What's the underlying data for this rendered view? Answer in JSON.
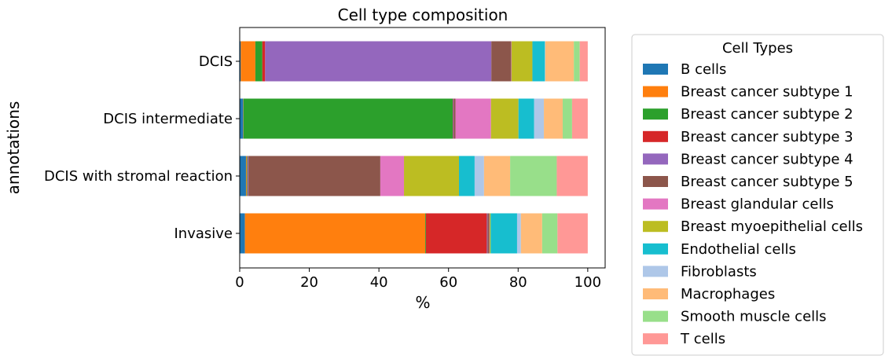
{
  "chart_data": {
    "type": "bar",
    "orientation": "horizontal",
    "stacked": true,
    "title": "Cell type composition",
    "xlabel": "%",
    "ylabel": "annotations",
    "xlim": [
      0,
      105
    ],
    "xticks": [
      "0",
      "20",
      "40",
      "60",
      "80",
      "100"
    ],
    "categories": [
      "DCIS",
      "DCIS intermediate",
      "DCIS with stromal reaction",
      "Invasive"
    ],
    "legend": {
      "title": "Cell Types",
      "placement": "outside right"
    },
    "grid": false,
    "series": [
      {
        "name": "B cells",
        "color": "#1f77b4",
        "values": [
          0.3,
          1.0,
          1.8,
          1.5
        ]
      },
      {
        "name": "Breast cancer subtype 1",
        "color": "#ff7f0e",
        "values": [
          4.2,
          0.1,
          0.2,
          51.8
        ]
      },
      {
        "name": "Breast cancer subtype 2",
        "color": "#2ca02c",
        "values": [
          2.0,
          60.1,
          0.2,
          0.2
        ]
      },
      {
        "name": "Breast cancer subtype 3",
        "color": "#d62728",
        "values": [
          0.8,
          0.1,
          0.1,
          17.5
        ]
      },
      {
        "name": "Breast cancer subtype 4",
        "color": "#9467bd",
        "values": [
          65.0,
          0.2,
          0.2,
          0.2
        ]
      },
      {
        "name": "Breast cancer subtype 5",
        "color": "#8c564b",
        "values": [
          5.7,
          0.5,
          37.9,
          0.5
        ]
      },
      {
        "name": "Breast glandular cells",
        "color": "#e377c2",
        "values": [
          0.1,
          10.2,
          6.8,
          0.1
        ]
      },
      {
        "name": "Breast myoepithelial cells",
        "color": "#bcbd22",
        "values": [
          6.0,
          7.9,
          15.8,
          0.3
        ]
      },
      {
        "name": "Endothelial cells",
        "color": "#17becf",
        "values": [
          3.6,
          4.5,
          4.5,
          7.6
        ]
      },
      {
        "name": "Fibroblasts",
        "color": "#aec7e8",
        "values": [
          0.1,
          2.8,
          2.7,
          1.1
        ]
      },
      {
        "name": "Macrophages",
        "color": "#ffbb78",
        "values": [
          8.2,
          5.4,
          7.5,
          6.1
        ]
      },
      {
        "name": "Smooth muscle cells",
        "color": "#98df8a",
        "values": [
          1.7,
          2.7,
          13.4,
          4.4
        ]
      },
      {
        "name": "T cells",
        "color": "#ff9896",
        "values": [
          2.3,
          4.5,
          8.9,
          8.7
        ]
      }
    ]
  }
}
